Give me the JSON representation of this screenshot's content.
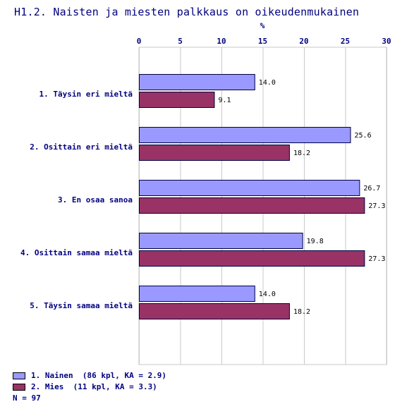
{
  "chart_data": {
    "type": "bar",
    "orientation": "horizontal",
    "title": "H1.2. Naisten ja miesten palkkaus on oikeudenmukainen",
    "xlabel": "%",
    "xlim": [
      0,
      30
    ],
    "xticks": [
      0,
      5,
      10,
      15,
      20,
      25,
      30
    ],
    "grid": true,
    "categories": [
      "1. Täysin eri mieltä",
      "2. Osittain eri mieltä",
      "3. En osaa sanoa",
      "4. Osittain samaa mieltä",
      "5. Täysin samaa mieltä"
    ],
    "series": [
      {
        "name": "1. Nainen  (86 kpl, KA = 2.9)",
        "color": "#9999ff",
        "values": [
          14.0,
          25.6,
          26.7,
          19.8,
          14.0
        ],
        "labels": [
          "14.0",
          "25.6",
          "26.7",
          "19.8",
          "14.0"
        ]
      },
      {
        "name": "2. Mies  (11 kpl, KA = 3.3)",
        "color": "#993366",
        "values": [
          9.1,
          18.2,
          27.3,
          27.3,
          18.2
        ],
        "labels": [
          "9.1",
          "18.2",
          "27.3",
          "27.3",
          "18.2"
        ]
      }
    ],
    "note": "N = 97"
  }
}
